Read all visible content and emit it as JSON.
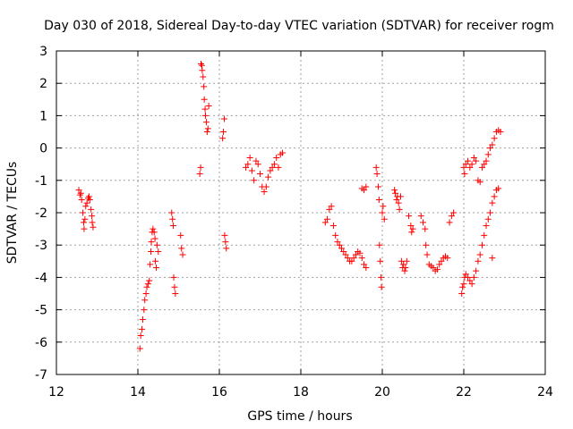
{
  "chart_data": {
    "type": "scatter",
    "title": "Day 030 of 2018, Sidereal Day-to-day VTEC variation (SDTVAR) for receiver rogm",
    "xlabel": "GPS time / hours",
    "ylabel": "SDTVAR / TECUs",
    "xlim": [
      12,
      24
    ],
    "ylim": [
      -7,
      3
    ],
    "xticks": [
      12,
      14,
      16,
      18,
      20,
      22,
      24
    ],
    "yticks": [
      -7,
      -6,
      -5,
      -4,
      -3,
      -2,
      -1,
      0,
      1,
      2,
      3
    ],
    "grid": true,
    "marker": "+",
    "color": "#ff0000",
    "series": [
      {
        "name": "SDTVAR",
        "points": [
          [
            12.55,
            -1.3
          ],
          [
            12.58,
            -1.45
          ],
          [
            12.6,
            -1.4
          ],
          [
            12.62,
            -1.6
          ],
          [
            12.65,
            -2.0
          ],
          [
            12.67,
            -2.3
          ],
          [
            12.68,
            -2.5
          ],
          [
            12.7,
            -2.2
          ],
          [
            12.72,
            -1.8
          ],
          [
            12.75,
            -1.7
          ],
          [
            12.78,
            -1.55
          ],
          [
            12.8,
            -1.5
          ],
          [
            12.82,
            -1.6
          ],
          [
            12.85,
            -1.9
          ],
          [
            12.87,
            -2.1
          ],
          [
            12.88,
            -2.3
          ],
          [
            12.9,
            -2.45
          ],
          [
            14.05,
            -6.2
          ],
          [
            14.07,
            -5.8
          ],
          [
            14.1,
            -5.6
          ],
          [
            14.12,
            -5.3
          ],
          [
            14.15,
            -5.0
          ],
          [
            14.17,
            -4.7
          ],
          [
            14.2,
            -4.5
          ],
          [
            14.22,
            -4.3
          ],
          [
            14.25,
            -4.2
          ],
          [
            14.28,
            -4.1
          ],
          [
            14.3,
            -3.6
          ],
          [
            14.32,
            -3.2
          ],
          [
            14.33,
            -2.9
          ],
          [
            14.35,
            -2.6
          ],
          [
            14.37,
            -2.5
          ],
          [
            14.4,
            -2.6
          ],
          [
            14.42,
            -2.8
          ],
          [
            14.43,
            -3.5
          ],
          [
            14.45,
            -3.7
          ],
          [
            14.47,
            -3.0
          ],
          [
            14.5,
            -3.2
          ],
          [
            14.83,
            -2.0
          ],
          [
            14.85,
            -2.2
          ],
          [
            14.87,
            -2.4
          ],
          [
            14.88,
            -4.0
          ],
          [
            14.9,
            -4.3
          ],
          [
            14.92,
            -4.5
          ],
          [
            15.05,
            -2.7
          ],
          [
            15.07,
            -3.1
          ],
          [
            15.1,
            -3.3
          ],
          [
            15.52,
            -0.8
          ],
          [
            15.54,
            -0.6
          ],
          [
            15.55,
            2.6
          ],
          [
            15.57,
            2.55
          ],
          [
            15.58,
            2.4
          ],
          [
            15.6,
            2.2
          ],
          [
            15.62,
            1.9
          ],
          [
            15.63,
            1.5
          ],
          [
            15.65,
            1.2
          ],
          [
            15.66,
            1.0
          ],
          [
            15.68,
            0.8
          ],
          [
            15.7,
            0.5
          ],
          [
            15.72,
            0.6
          ],
          [
            15.74,
            1.3
          ],
          [
            16.08,
            0.3
          ],
          [
            16.1,
            0.5
          ],
          [
            16.12,
            0.9
          ],
          [
            16.13,
            -2.7
          ],
          [
            16.15,
            -2.9
          ],
          [
            16.17,
            -3.1
          ],
          [
            16.65,
            -0.6
          ],
          [
            16.7,
            -0.5
          ],
          [
            16.75,
            -0.3
          ],
          [
            16.8,
            -0.7
          ],
          [
            16.85,
            -1.0
          ],
          [
            16.9,
            -0.4
          ],
          [
            16.95,
            -0.5
          ],
          [
            17.0,
            -0.8
          ],
          [
            17.05,
            -1.2
          ],
          [
            17.1,
            -1.35
          ],
          [
            17.15,
            -1.2
          ],
          [
            17.2,
            -0.9
          ],
          [
            17.25,
            -0.7
          ],
          [
            17.3,
            -0.6
          ],
          [
            17.35,
            -0.5
          ],
          [
            17.4,
            -0.3
          ],
          [
            17.45,
            -0.6
          ],
          [
            17.5,
            -0.2
          ],
          [
            17.55,
            -0.15
          ],
          [
            18.6,
            -2.3
          ],
          [
            18.65,
            -2.2
          ],
          [
            18.7,
            -1.9
          ],
          [
            18.75,
            -1.8
          ],
          [
            18.8,
            -2.4
          ],
          [
            18.85,
            -2.7
          ],
          [
            18.9,
            -2.9
          ],
          [
            18.95,
            -3.0
          ],
          [
            19.0,
            -3.1
          ],
          [
            19.05,
            -3.2
          ],
          [
            19.1,
            -3.3
          ],
          [
            19.15,
            -3.4
          ],
          [
            19.2,
            -3.5
          ],
          [
            19.25,
            -3.5
          ],
          [
            19.3,
            -3.4
          ],
          [
            19.35,
            -3.3
          ],
          [
            19.4,
            -3.2
          ],
          [
            19.45,
            -3.25
          ],
          [
            19.5,
            -3.4
          ],
          [
            19.55,
            -3.6
          ],
          [
            19.6,
            -3.7
          ],
          [
            19.5,
            -1.25
          ],
          [
            19.55,
            -1.3
          ],
          [
            19.6,
            -1.2
          ],
          [
            19.85,
            -0.6
          ],
          [
            19.87,
            -0.8
          ],
          [
            19.9,
            -1.2
          ],
          [
            19.92,
            -1.6
          ],
          [
            19.93,
            -3.0
          ],
          [
            19.95,
            -3.5
          ],
          [
            19.97,
            -4.0
          ],
          [
            19.98,
            -4.3
          ],
          [
            20.0,
            -2.0
          ],
          [
            20.02,
            -1.8
          ],
          [
            20.05,
            -2.2
          ],
          [
            20.3,
            -1.3
          ],
          [
            20.32,
            -1.4
          ],
          [
            20.35,
            -1.6
          ],
          [
            20.37,
            -1.5
          ],
          [
            20.4,
            -1.7
          ],
          [
            20.42,
            -1.9
          ],
          [
            20.45,
            -1.5
          ],
          [
            20.47,
            -3.5
          ],
          [
            20.5,
            -3.7
          ],
          [
            20.52,
            -3.6
          ],
          [
            20.55,
            -3.8
          ],
          [
            20.57,
            -3.7
          ],
          [
            20.6,
            -3.5
          ],
          [
            20.65,
            -2.1
          ],
          [
            20.7,
            -2.4
          ],
          [
            20.72,
            -2.6
          ],
          [
            20.75,
            -2.5
          ],
          [
            20.95,
            -2.1
          ],
          [
            21.0,
            -2.3
          ],
          [
            21.05,
            -2.5
          ],
          [
            21.07,
            -3.0
          ],
          [
            21.1,
            -3.3
          ],
          [
            21.15,
            -3.6
          ],
          [
            21.2,
            -3.65
          ],
          [
            21.25,
            -3.7
          ],
          [
            21.3,
            -3.8
          ],
          [
            21.35,
            -3.75
          ],
          [
            21.4,
            -3.6
          ],
          [
            21.45,
            -3.5
          ],
          [
            21.5,
            -3.4
          ],
          [
            21.55,
            -3.35
          ],
          [
            21.6,
            -3.4
          ],
          [
            21.65,
            -2.3
          ],
          [
            21.7,
            -2.1
          ],
          [
            21.75,
            -2.0
          ],
          [
            21.95,
            -4.5
          ],
          [
            21.97,
            -4.3
          ],
          [
            22.0,
            -4.2
          ],
          [
            22.02,
            -4.0
          ],
          [
            22.05,
            -3.9
          ],
          [
            22.1,
            -4.0
          ],
          [
            22.15,
            -4.1
          ],
          [
            22.2,
            -4.2
          ],
          [
            22.25,
            -4.0
          ],
          [
            22.3,
            -3.8
          ],
          [
            22.35,
            -3.5
          ],
          [
            22.4,
            -3.3
          ],
          [
            22.45,
            -3.0
          ],
          [
            22.5,
            -2.7
          ],
          [
            22.55,
            -2.4
          ],
          [
            22.6,
            -2.2
          ],
          [
            22.65,
            -2.0
          ],
          [
            22.7,
            -1.7
          ],
          [
            22.75,
            -1.5
          ],
          [
            22.8,
            -1.3
          ],
          [
            22.85,
            -1.25
          ],
          [
            22.0,
            -0.6
          ],
          [
            22.02,
            -0.8
          ],
          [
            22.05,
            -0.5
          ],
          [
            22.1,
            -0.4
          ],
          [
            22.15,
            -0.6
          ],
          [
            22.2,
            -0.5
          ],
          [
            22.25,
            -0.3
          ],
          [
            22.3,
            -0.4
          ],
          [
            22.35,
            -1.0
          ],
          [
            22.4,
            -1.05
          ],
          [
            22.45,
            -0.6
          ],
          [
            22.5,
            -0.5
          ],
          [
            22.55,
            -0.4
          ],
          [
            22.6,
            -0.2
          ],
          [
            22.65,
            0.0
          ],
          [
            22.7,
            0.1
          ],
          [
            22.75,
            0.3
          ],
          [
            22.8,
            0.5
          ],
          [
            22.85,
            0.55
          ],
          [
            22.9,
            0.5
          ],
          [
            22.7,
            -3.4
          ]
        ]
      }
    ]
  }
}
